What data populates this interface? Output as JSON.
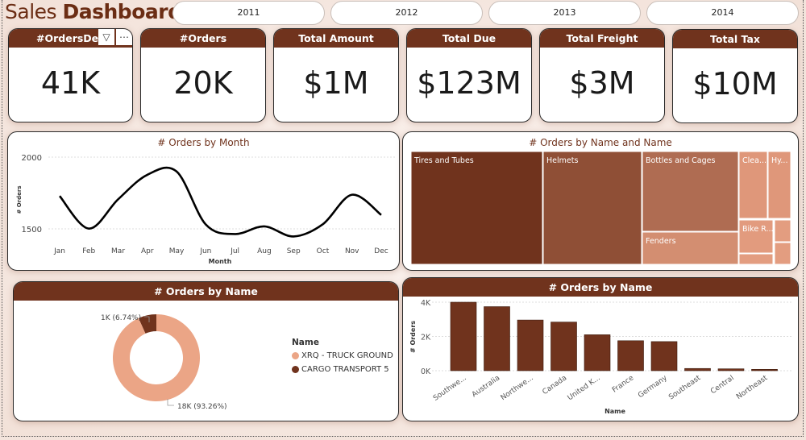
{
  "header": {
    "title_light": "Sales",
    "title_bold": "Dashboard"
  },
  "year_slicer": [
    "2011",
    "2012",
    "2013",
    "2014"
  ],
  "kpis": [
    {
      "label": "#OrdersDetai",
      "value": "41K"
    },
    {
      "label": "#Orders",
      "value": "20K"
    },
    {
      "label": "Total Amount",
      "value": "$1M"
    },
    {
      "label": "Total Due",
      "value": "$123M"
    },
    {
      "label": "Total Freight",
      "value": "$3M"
    },
    {
      "label": "Total Tax",
      "value": "$10M"
    }
  ],
  "kpi_tools": {
    "filter_icon": "filter-icon",
    "more_icon": "more-options-icon",
    "more_glyph": "⋯",
    "filter_glyph": "▽"
  },
  "colors": {
    "brand": "#70331d",
    "light": "#eba586",
    "bg": "#f3e4dc"
  },
  "chart_data": [
    {
      "id": "line",
      "type": "line",
      "title": "# Orders by Month",
      "xlabel": "Month",
      "ylabel": "# Orders",
      "categories": [
        "Jan",
        "Feb",
        "Mar",
        "Apr",
        "May",
        "Jun",
        "Jul",
        "Aug",
        "Sep",
        "Oct",
        "Nov",
        "Dec"
      ],
      "values": [
        1729,
        1502,
        1706,
        1877,
        1900,
        1530,
        1464,
        1517,
        1447,
        1532,
        1738,
        1597
      ],
      "yticks": [
        1500,
        2000
      ],
      "ytick_labels": [
        "1500",
        "2000"
      ],
      "ylim": [
        1400,
        2000
      ],
      "grid": true
    },
    {
      "id": "treemap",
      "type": "treemap",
      "title": "# Orders by Name and Name",
      "items": [
        {
          "label": "Tires and Tubes",
          "color": "#70331d"
        },
        {
          "label": "Helmets",
          "color": "#8f4f36"
        },
        {
          "label": "Bottles and Cages",
          "color": "#af6c52"
        },
        {
          "label": "Fenders",
          "color": "#d38e71"
        },
        {
          "label": "Clea...",
          "color": "#df977a"
        },
        {
          "label": "Hy...",
          "color": "#df977a"
        },
        {
          "label": "Bike R...",
          "color": "#e29b7e"
        },
        {
          "label": "",
          "color": "#e39d80"
        },
        {
          "label": "",
          "color": "#e39d80"
        },
        {
          "label": "",
          "color": "#e39d80"
        }
      ]
    },
    {
      "id": "donut",
      "type": "pie",
      "title": "# Orders by Name",
      "legend_title": "Name",
      "legend_position": "right",
      "slices": [
        {
          "name": "XRQ - TRUCK GROUND",
          "value": 18000,
          "percent": 93.26,
          "label": "18K (93.26%)",
          "color": "#eba586"
        },
        {
          "name": "CARGO TRANSPORT 5",
          "value": 1000,
          "percent": 6.74,
          "label": "1K (6.74%)",
          "color": "#70331d"
        }
      ]
    },
    {
      "id": "bar",
      "type": "bar",
      "title": "# Orders by Name",
      "xlabel": "Name",
      "ylabel": "# Orders",
      "categories": [
        "Southwe...",
        "Australia",
        "Northwe...",
        "Canada",
        "United K...",
        "France",
        "Germany",
        "Southeast",
        "Central",
        "Northeast"
      ],
      "values": [
        4000,
        3740,
        2960,
        2840,
        2100,
        1750,
        1700,
        130,
        110,
        80
      ],
      "yticks": [
        0,
        2000,
        4000
      ],
      "ytick_labels": [
        "0K",
        "2K",
        "4K"
      ],
      "ylim": [
        0,
        4000
      ],
      "grid": true
    }
  ]
}
